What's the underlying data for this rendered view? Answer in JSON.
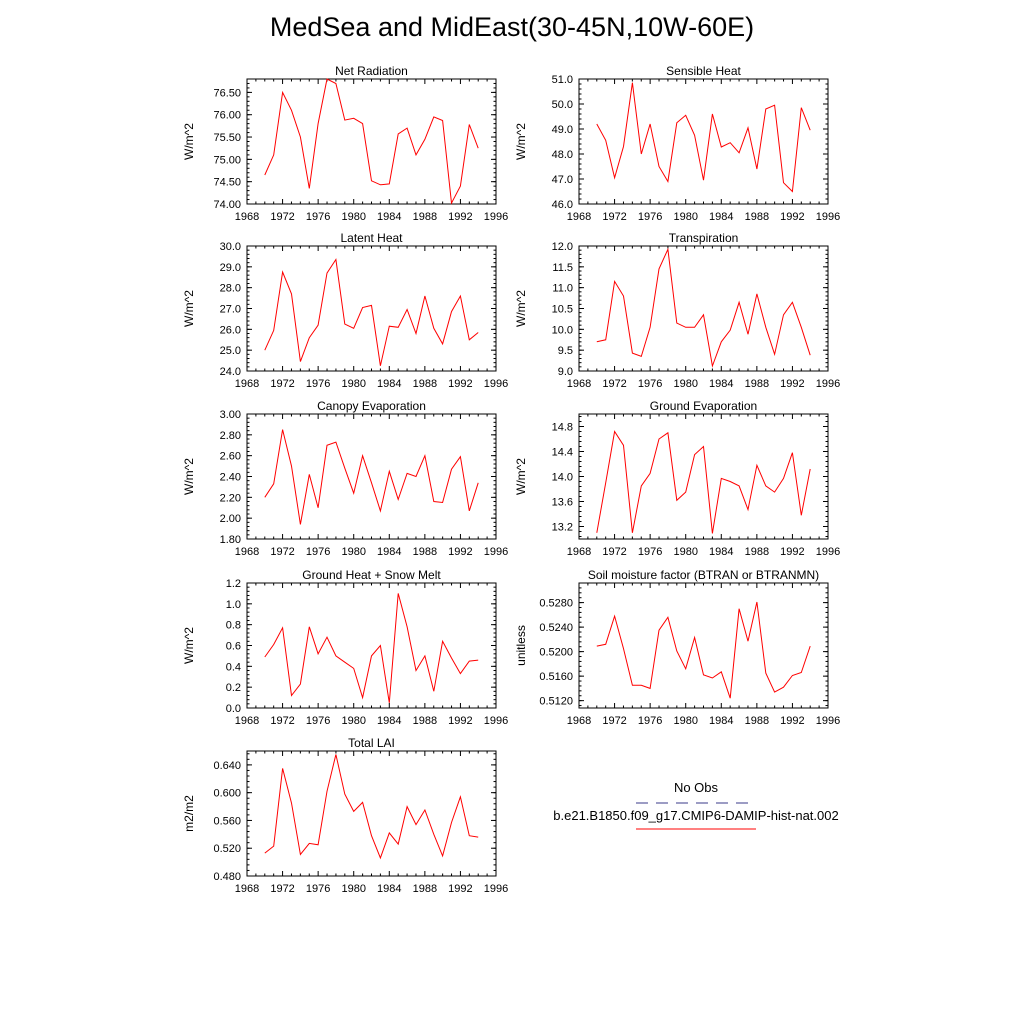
{
  "title": "MedSea and MidEast(30-45N,10W-60E)",
  "colors": {
    "model_line": "#ff0000",
    "obs_line": "#3a3a8a",
    "axis": "#000000"
  },
  "legend": {
    "obs_label": "No Obs",
    "model_label": "b.e21.B1850.f09_g17.CMIP6-DAMIP-hist-nat.002"
  },
  "chart_data": [
    {
      "type": "line",
      "title": "Net Radiation",
      "ylabel": "W/m^2",
      "xlim": [
        1968,
        1996
      ],
      "xticks": [
        1968,
        1972,
        1976,
        1980,
        1984,
        1988,
        1992,
        1996
      ],
      "xtick_labels": [
        "1968",
        "1972",
        "1976",
        "1980",
        "1984",
        "1988",
        "1992",
        "1996"
      ],
      "ylim": [
        74.0,
        76.8
      ],
      "yticks": [
        74.0,
        74.5,
        75.0,
        75.5,
        76.0,
        76.5
      ],
      "ytick_labels": [
        "74.00",
        "74.50",
        "75.00",
        "75.50",
        "76.00",
        "76.50"
      ],
      "series": [
        {
          "x": [
            1970,
            1971,
            1972,
            1973,
            1974,
            1975,
            1976,
            1977,
            1978,
            1979,
            1980,
            1981,
            1982,
            1983,
            1984,
            1985,
            1986,
            1987,
            1988,
            1989,
            1990,
            1991,
            1992,
            1993,
            1994
          ],
          "values": [
            74.65,
            75.1,
            76.5,
            76.1,
            75.5,
            74.35,
            75.8,
            76.8,
            76.7,
            75.88,
            75.92,
            75.8,
            74.52,
            74.43,
            74.45,
            75.57,
            75.7,
            75.1,
            75.45,
            75.95,
            75.87,
            74.02,
            74.4,
            75.78,
            75.25
          ]
        }
      ]
    },
    {
      "type": "line",
      "title": "Sensible Heat",
      "ylabel": "W/m^2",
      "xlim": [
        1968,
        1996
      ],
      "xticks": [
        1968,
        1972,
        1976,
        1980,
        1984,
        1988,
        1992,
        1996
      ],
      "xtick_labels": [
        "1968",
        "1972",
        "1976",
        "1980",
        "1984",
        "1988",
        "1992",
        "1996"
      ],
      "ylim": [
        46.0,
        51.0
      ],
      "yticks": [
        46.0,
        47.0,
        48.0,
        49.0,
        50.0,
        51.0
      ],
      "ytick_labels": [
        "46.0",
        "47.0",
        "48.0",
        "49.0",
        "50.0",
        "51.0"
      ],
      "series": [
        {
          "x": [
            1970,
            1971,
            1972,
            1973,
            1974,
            1975,
            1976,
            1977,
            1978,
            1979,
            1980,
            1981,
            1982,
            1983,
            1984,
            1985,
            1986,
            1987,
            1988,
            1989,
            1990,
            1991,
            1992,
            1993,
            1994
          ],
          "values": [
            49.2,
            48.55,
            47.05,
            48.3,
            50.85,
            48.0,
            49.2,
            47.5,
            46.9,
            49.25,
            49.55,
            48.75,
            46.95,
            49.6,
            48.28,
            48.45,
            48.05,
            49.05,
            47.4,
            49.8,
            49.95,
            46.85,
            46.5,
            49.85,
            48.95
          ]
        }
      ]
    },
    {
      "type": "line",
      "title": "Latent Heat",
      "ylabel": "W/m^2",
      "xlim": [
        1968,
        1996
      ],
      "xticks": [
        1968,
        1972,
        1976,
        1980,
        1984,
        1988,
        1992,
        1996
      ],
      "xtick_labels": [
        "1968",
        "1972",
        "1976",
        "1980",
        "1984",
        "1988",
        "1992",
        "1996"
      ],
      "ylim": [
        24.0,
        30.0
      ],
      "yticks": [
        24.0,
        25.0,
        26.0,
        27.0,
        28.0,
        29.0,
        30.0
      ],
      "ytick_labels": [
        "24.0",
        "25.0",
        "26.0",
        "27.0",
        "28.0",
        "29.0",
        "30.0"
      ],
      "series": [
        {
          "x": [
            1970,
            1971,
            1972,
            1973,
            1974,
            1975,
            1976,
            1977,
            1978,
            1979,
            1980,
            1981,
            1982,
            1983,
            1984,
            1985,
            1986,
            1987,
            1988,
            1989,
            1990,
            1991,
            1992,
            1993,
            1994
          ],
          "values": [
            25.0,
            25.95,
            28.75,
            27.7,
            24.45,
            25.6,
            26.2,
            28.7,
            29.35,
            26.25,
            26.05,
            27.05,
            27.15,
            24.25,
            26.15,
            26.1,
            26.95,
            25.8,
            27.6,
            26.05,
            25.3,
            26.85,
            27.6,
            25.5,
            25.85
          ]
        }
      ]
    },
    {
      "type": "line",
      "title": "Transpiration",
      "ylabel": "W/m^2",
      "xlim": [
        1968,
        1996
      ],
      "xticks": [
        1968,
        1972,
        1976,
        1980,
        1984,
        1988,
        1992,
        1996
      ],
      "xtick_labels": [
        "1968",
        "1972",
        "1976",
        "1980",
        "1984",
        "1988",
        "1992",
        "1996"
      ],
      "ylim": [
        9.0,
        12.0
      ],
      "yticks": [
        9.0,
        9.5,
        10.0,
        10.5,
        11.0,
        11.5,
        12.0
      ],
      "ytick_labels": [
        "9.0",
        "9.5",
        "10.0",
        "10.5",
        "11.0",
        "11.5",
        "12.0"
      ],
      "series": [
        {
          "x": [
            1970,
            1971,
            1972,
            1973,
            1974,
            1975,
            1976,
            1977,
            1978,
            1979,
            1980,
            1981,
            1982,
            1983,
            1984,
            1985,
            1986,
            1987,
            1988,
            1989,
            1990,
            1991,
            1992,
            1993,
            1994
          ],
          "values": [
            9.7,
            9.75,
            11.15,
            10.8,
            9.43,
            9.35,
            10.05,
            11.45,
            11.92,
            10.15,
            10.05,
            10.05,
            10.35,
            9.12,
            9.7,
            9.98,
            10.65,
            9.88,
            10.85,
            10.05,
            9.4,
            10.35,
            10.65,
            10.05,
            9.38
          ]
        }
      ]
    },
    {
      "type": "line",
      "title": "Canopy Evaporation",
      "ylabel": "W/m^2",
      "xlim": [
        1968,
        1996
      ],
      "xticks": [
        1968,
        1972,
        1976,
        1980,
        1984,
        1988,
        1992,
        1996
      ],
      "xtick_labels": [
        "1968",
        "1972",
        "1976",
        "1980",
        "1984",
        "1988",
        "1992",
        "1996"
      ],
      "ylim": [
        1.8,
        3.0
      ],
      "yticks": [
        1.8,
        2.0,
        2.2,
        2.4,
        2.6,
        2.8,
        3.0
      ],
      "ytick_labels": [
        "1.80",
        "2.00",
        "2.20",
        "2.40",
        "2.60",
        "2.80",
        "3.00"
      ],
      "series": [
        {
          "x": [
            1970,
            1971,
            1972,
            1973,
            1974,
            1975,
            1976,
            1977,
            1978,
            1979,
            1980,
            1981,
            1982,
            1983,
            1984,
            1985,
            1986,
            1987,
            1988,
            1989,
            1990,
            1991,
            1992,
            1993,
            1994
          ],
          "values": [
            2.2,
            2.33,
            2.85,
            2.5,
            1.94,
            2.42,
            2.1,
            2.7,
            2.73,
            2.48,
            2.24,
            2.6,
            2.34,
            2.07,
            2.45,
            2.18,
            2.43,
            2.4,
            2.6,
            2.16,
            2.15,
            2.47,
            2.59,
            2.07,
            2.34
          ]
        }
      ]
    },
    {
      "type": "line",
      "title": "Ground Evaporation",
      "ylabel": "W/m^2",
      "xlim": [
        1968,
        1996
      ],
      "xticks": [
        1968,
        1972,
        1976,
        1980,
        1984,
        1988,
        1992,
        1996
      ],
      "xtick_labels": [
        "1968",
        "1972",
        "1976",
        "1980",
        "1984",
        "1988",
        "1992",
        "1996"
      ],
      "ylim": [
        13.0,
        15.0
      ],
      "yticks": [
        13.2,
        13.6,
        14.0,
        14.4,
        14.8
      ],
      "ytick_labels": [
        "13.2",
        "13.6",
        "14.0",
        "14.4",
        "14.8"
      ],
      "series": [
        {
          "x": [
            1970,
            1971,
            1972,
            1973,
            1974,
            1975,
            1976,
            1977,
            1978,
            1979,
            1980,
            1981,
            1982,
            1983,
            1984,
            1985,
            1986,
            1987,
            1988,
            1989,
            1990,
            1991,
            1992,
            1993,
            1994
          ],
          "values": [
            13.1,
            13.9,
            14.72,
            14.5,
            13.1,
            13.85,
            14.05,
            14.6,
            14.7,
            13.62,
            13.75,
            14.35,
            14.48,
            13.09,
            13.97,
            13.92,
            13.85,
            13.47,
            14.18,
            13.85,
            13.75,
            13.97,
            14.38,
            13.38,
            14.12
          ]
        }
      ]
    },
    {
      "type": "line",
      "title": "Ground Heat + Snow Melt",
      "ylabel": "W/m^2",
      "xlim": [
        1968,
        1996
      ],
      "xticks": [
        1968,
        1972,
        1976,
        1980,
        1984,
        1988,
        1992,
        1996
      ],
      "xtick_labels": [
        "1968",
        "1972",
        "1976",
        "1980",
        "1984",
        "1988",
        "1992",
        "1996"
      ],
      "ylim": [
        0.0,
        1.2
      ],
      "yticks": [
        0.0,
        0.2,
        0.4,
        0.6,
        0.8,
        1.0,
        1.2
      ],
      "ytick_labels": [
        "0.0",
        "0.2",
        "0.4",
        "0.6",
        "0.8",
        "1.0",
        "1.2"
      ],
      "series": [
        {
          "x": [
            1970,
            1971,
            1972,
            1973,
            1974,
            1975,
            1976,
            1977,
            1978,
            1979,
            1980,
            1981,
            1982,
            1983,
            1984,
            1985,
            1986,
            1987,
            1988,
            1989,
            1990,
            1991,
            1992,
            1993,
            1994
          ],
          "values": [
            0.49,
            0.61,
            0.77,
            0.12,
            0.23,
            0.78,
            0.52,
            0.68,
            0.5,
            0.44,
            0.38,
            0.1,
            0.5,
            0.6,
            0.05,
            1.1,
            0.78,
            0.36,
            0.5,
            0.16,
            0.64,
            0.48,
            0.33,
            0.45,
            0.46
          ]
        }
      ]
    },
    {
      "type": "line",
      "title": "Soil moisture factor (BTRAN or BTRANMN)",
      "ylabel": "unitless",
      "xlim": [
        1968,
        1996
      ],
      "xticks": [
        1968,
        1972,
        1976,
        1980,
        1984,
        1988,
        1992,
        1996
      ],
      "xtick_labels": [
        "1968",
        "1972",
        "1976",
        "1980",
        "1984",
        "1988",
        "1992",
        "1996"
      ],
      "ylim": [
        0.5108,
        0.5312
      ],
      "yticks": [
        0.512,
        0.516,
        0.52,
        0.524,
        0.528
      ],
      "ytick_labels": [
        "0.5120",
        "0.5160",
        "0.5200",
        "0.5240",
        "0.5280"
      ],
      "series": [
        {
          "x": [
            1970,
            1971,
            1972,
            1973,
            1974,
            1975,
            1976,
            1977,
            1978,
            1979,
            1980,
            1981,
            1982,
            1983,
            1984,
            1985,
            1986,
            1987,
            1988,
            1989,
            1990,
            1991,
            1992,
            1993,
            1994
          ],
          "values": [
            0.5209,
            0.5212,
            0.5258,
            0.5205,
            0.5145,
            0.5145,
            0.514,
            0.5235,
            0.5256,
            0.5201,
            0.5172,
            0.5223,
            0.5162,
            0.5157,
            0.5167,
            0.5124,
            0.527,
            0.5217,
            0.5281,
            0.5165,
            0.5134,
            0.5142,
            0.5161,
            0.5166,
            0.5209
          ]
        }
      ]
    },
    {
      "type": "line",
      "title": "Total LAI",
      "ylabel": "m2/m2",
      "xlim": [
        1968,
        1996
      ],
      "xticks": [
        1968,
        1972,
        1976,
        1980,
        1984,
        1988,
        1992,
        1996
      ],
      "xtick_labels": [
        "1968",
        "1972",
        "1976",
        "1980",
        "1984",
        "1988",
        "1992",
        "1996"
      ],
      "ylim": [
        0.48,
        0.66
      ],
      "yticks": [
        0.48,
        0.52,
        0.56,
        0.6,
        0.64
      ],
      "ytick_labels": [
        "0.480",
        "0.520",
        "0.560",
        "0.600",
        "0.640"
      ],
      "series": [
        {
          "x": [
            1970,
            1971,
            1972,
            1973,
            1974,
            1975,
            1976,
            1977,
            1978,
            1979,
            1980,
            1981,
            1982,
            1983,
            1984,
            1985,
            1986,
            1987,
            1988,
            1989,
            1990,
            1991,
            1992,
            1993,
            1994
          ],
          "values": [
            0.513,
            0.523,
            0.635,
            0.585,
            0.511,
            0.527,
            0.525,
            0.602,
            0.655,
            0.598,
            0.573,
            0.586,
            0.538,
            0.506,
            0.542,
            0.526,
            0.58,
            0.554,
            0.575,
            0.54,
            0.509,
            0.557,
            0.594,
            0.538,
            0.536
          ]
        }
      ]
    }
  ]
}
